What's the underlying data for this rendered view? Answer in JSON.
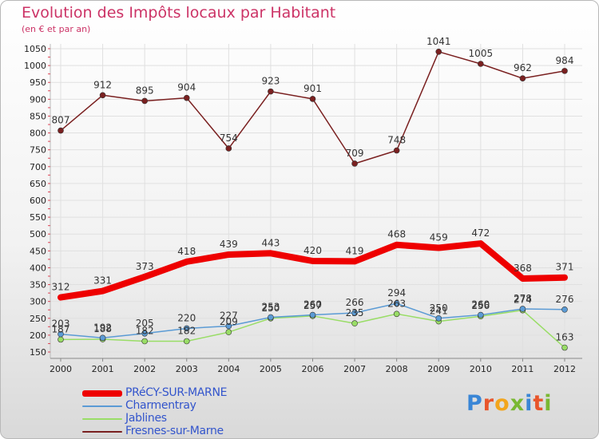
{
  "header": {
    "title": "Evolution des Impôts locaux par Habitant",
    "subtitle": "(en € et par an)"
  },
  "logo": {
    "text": "Proxiti",
    "colors": [
      "#3a86d6",
      "#e8552b",
      "#f2a51c",
      "#79b832",
      "#3a86d6",
      "#e8552b",
      "#79b832"
    ]
  },
  "colors": {
    "title": "#cc3366",
    "axis_text": "#222222",
    "legend_text": "#3355cc"
  },
  "chart_data": {
    "type": "line",
    "title": "Evolution des Impôts locaux par Habitant",
    "subtitle": "(en € et par an)",
    "x": [
      "2000",
      "2001",
      "2002",
      "2003",
      "2004",
      "2005",
      "2006",
      "2007",
      "2008",
      "2009",
      "2010",
      "2011",
      "2012"
    ],
    "yticks": [
      150,
      200,
      250,
      300,
      350,
      400,
      450,
      500,
      550,
      600,
      650,
      700,
      750,
      800,
      850,
      900,
      950,
      1000,
      1050
    ],
    "ylim": [
      140,
      1050
    ],
    "grid": true,
    "legend_position": "bottom-left",
    "series": [
      {
        "name": "PRéCY-SUR-MARNE",
        "color": "#ee0000",
        "values": [
          312,
          331,
          373,
          418,
          439,
          443,
          420,
          419,
          468,
          459,
          472,
          368,
          371
        ]
      },
      {
        "name": "Charmentray",
        "color": "#5b9bd5",
        "values": [
          203,
          192,
          205,
          220,
          227,
          253,
          260,
          266,
          294,
          250,
          260,
          278,
          276
        ]
      },
      {
        "name": "Jablines",
        "color": "#99dd66",
        "values": [
          187,
          188,
          182,
          182,
          209,
          250,
          257,
          235,
          263,
          241,
          256,
          274,
          163
        ]
      },
      {
        "name": "Fresnes-sur-Marne",
        "color": "#7a2020",
        "values": [
          807,
          912,
          895,
          904,
          754,
          923,
          901,
          709,
          748,
          1041,
          1005,
          962,
          984
        ]
      }
    ]
  }
}
